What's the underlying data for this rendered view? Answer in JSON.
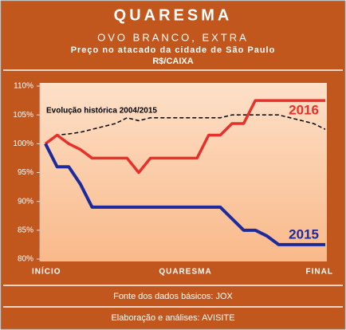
{
  "chart_data": {
    "type": "line",
    "title": "QUARESMA",
    "subtitle": "OVO BRANCO, EXTRA",
    "subtitle2": "Preço no atacado da cidade de São Paulo",
    "unit": "R$/CAIXA",
    "categories": [
      "INÍCIO",
      null,
      null,
      null,
      null,
      null,
      null,
      null,
      null,
      null,
      null,
      null,
      "QUARESMA",
      null,
      null,
      null,
      null,
      null,
      null,
      null,
      null,
      null,
      null,
      null,
      "FINAL"
    ],
    "ylim": [
      80,
      110
    ],
    "yticks": [
      {
        "value": 80,
        "label": "80%"
      },
      {
        "value": 85,
        "label": "85%"
      },
      {
        "value": 90,
        "label": "90%"
      },
      {
        "value": 95,
        "label": "95%"
      },
      {
        "value": 100,
        "label": "100%"
      },
      {
        "value": 105,
        "label": "105%"
      },
      {
        "value": 110,
        "label": "110%"
      }
    ],
    "series": [
      {
        "name": "Evolução histórica 2004/2015",
        "color": "#000000",
        "dashed": true,
        "values": [
          100,
          101.5,
          101.7,
          102,
          102.5,
          103,
          103.5,
          104.5,
          104,
          104.5,
          104.5,
          104.5,
          104.5,
          104.5,
          104.5,
          104.5,
          105,
          105,
          105,
          105,
          105,
          104.5,
          104,
          103.5,
          102.5
        ]
      },
      {
        "name": "2016",
        "color": "#e8302a",
        "values": [
          100,
          101.5,
          100,
          99,
          97.5,
          97.5,
          97.5,
          97.5,
          95,
          97.5,
          97.5,
          97.5,
          97.5,
          97.5,
          101.5,
          101.5,
          103.5,
          103.5,
          107.5,
          107.5,
          107.5,
          107.5,
          107.5,
          107.5,
          107.5
        ]
      },
      {
        "name": "2015",
        "color": "#1c2a9c",
        "values": [
          100,
          96,
          96,
          93,
          89,
          89,
          89,
          89,
          89,
          89,
          89,
          89,
          89,
          89,
          89,
          89,
          87,
          85,
          85,
          84,
          82.5,
          82.5,
          82.5,
          82.5,
          82.5
        ]
      }
    ],
    "footer": [
      "Fonte dos dados básicos: JOX",
      "Elaboração e análises: AVISITE"
    ]
  }
}
